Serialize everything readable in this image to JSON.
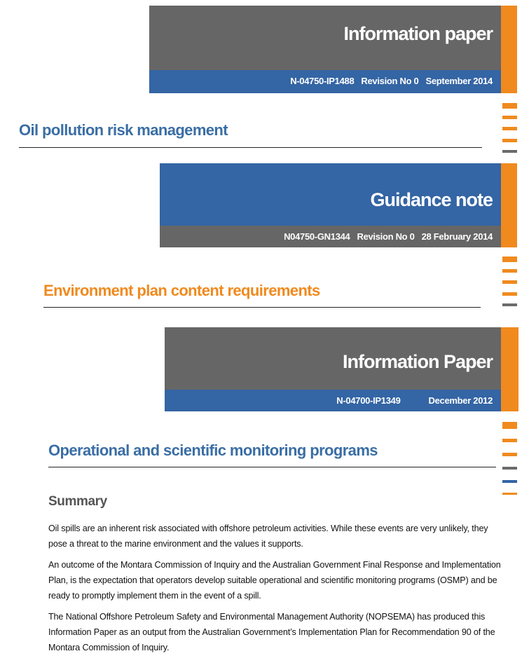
{
  "documents": [
    {
      "banner": "Information paper",
      "reference": "N-04750-IP1488",
      "revision": "Revision No 0",
      "date": "September 2014",
      "title": "Oil pollution risk management"
    },
    {
      "banner": "Guidance note",
      "reference": "N04750-GN1344",
      "revision": "Revision No 0",
      "date": "28 February 2014",
      "title": "Environment plan content requirements"
    },
    {
      "banner": "Information Paper",
      "reference": "N-04700-IP1349",
      "date": "December 2012",
      "title": "Operational and scientific monitoring programs"
    }
  ],
  "summary": {
    "heading": "Summary",
    "paragraphs": [
      "Oil spills are an inherent risk associated with offshore petroleum activities.  While these events are very unlikely, they pose a threat to the marine environment and the values it supports.",
      "An outcome of the Montara Commission of Inquiry and the Australian Government Final Response and Implementation Plan, is the expectation that operators develop suitable operational and scientific monitoring programs (OSMP) and be ready to promptly implement them in the event of a spill.",
      "The National Offshore Petroleum Safety and Environmental Management Authority (NOPSEMA) has produced this Information Paper as an output from the Australian Government’s Implementation Plan for Recommendation 90 of the Montara Commission of Inquiry."
    ]
  }
}
